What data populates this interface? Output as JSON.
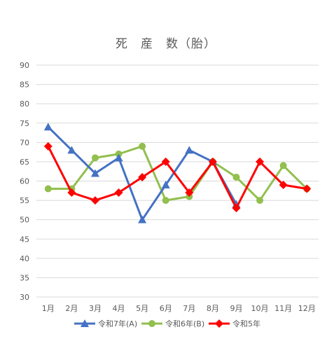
{
  "chart_data": {
    "type": "line",
    "title": "死　産　数（胎）",
    "categories": [
      "1月",
      "2月",
      "3月",
      "4月",
      "5月",
      "6月",
      "7月",
      "8月",
      "9月",
      "10月",
      "11月",
      "12月"
    ],
    "ylim": [
      30,
      90
    ],
    "yticks": [
      30,
      35,
      40,
      45,
      50,
      55,
      60,
      65,
      70,
      75,
      80,
      85,
      90
    ],
    "grid": true,
    "legend_position": "bottom",
    "series": [
      {
        "name": "令和7年(A)",
        "color": "#4472C4",
        "marker": "triangle",
        "values": [
          74,
          68,
          62,
          66,
          50,
          59,
          68,
          65,
          54,
          null,
          null,
          null
        ]
      },
      {
        "name": "令和6年(B)",
        "color": "#92BF4E",
        "marker": "circle",
        "values": [
          58,
          58,
          66,
          67,
          69,
          55,
          56,
          65,
          61,
          55,
          64,
          58
        ]
      },
      {
        "name": "令和5年",
        "color": "#FF0000",
        "marker": "diamond",
        "values": [
          69,
          57,
          55,
          57,
          61,
          65,
          57,
          65,
          53,
          65,
          59,
          58
        ]
      }
    ]
  }
}
